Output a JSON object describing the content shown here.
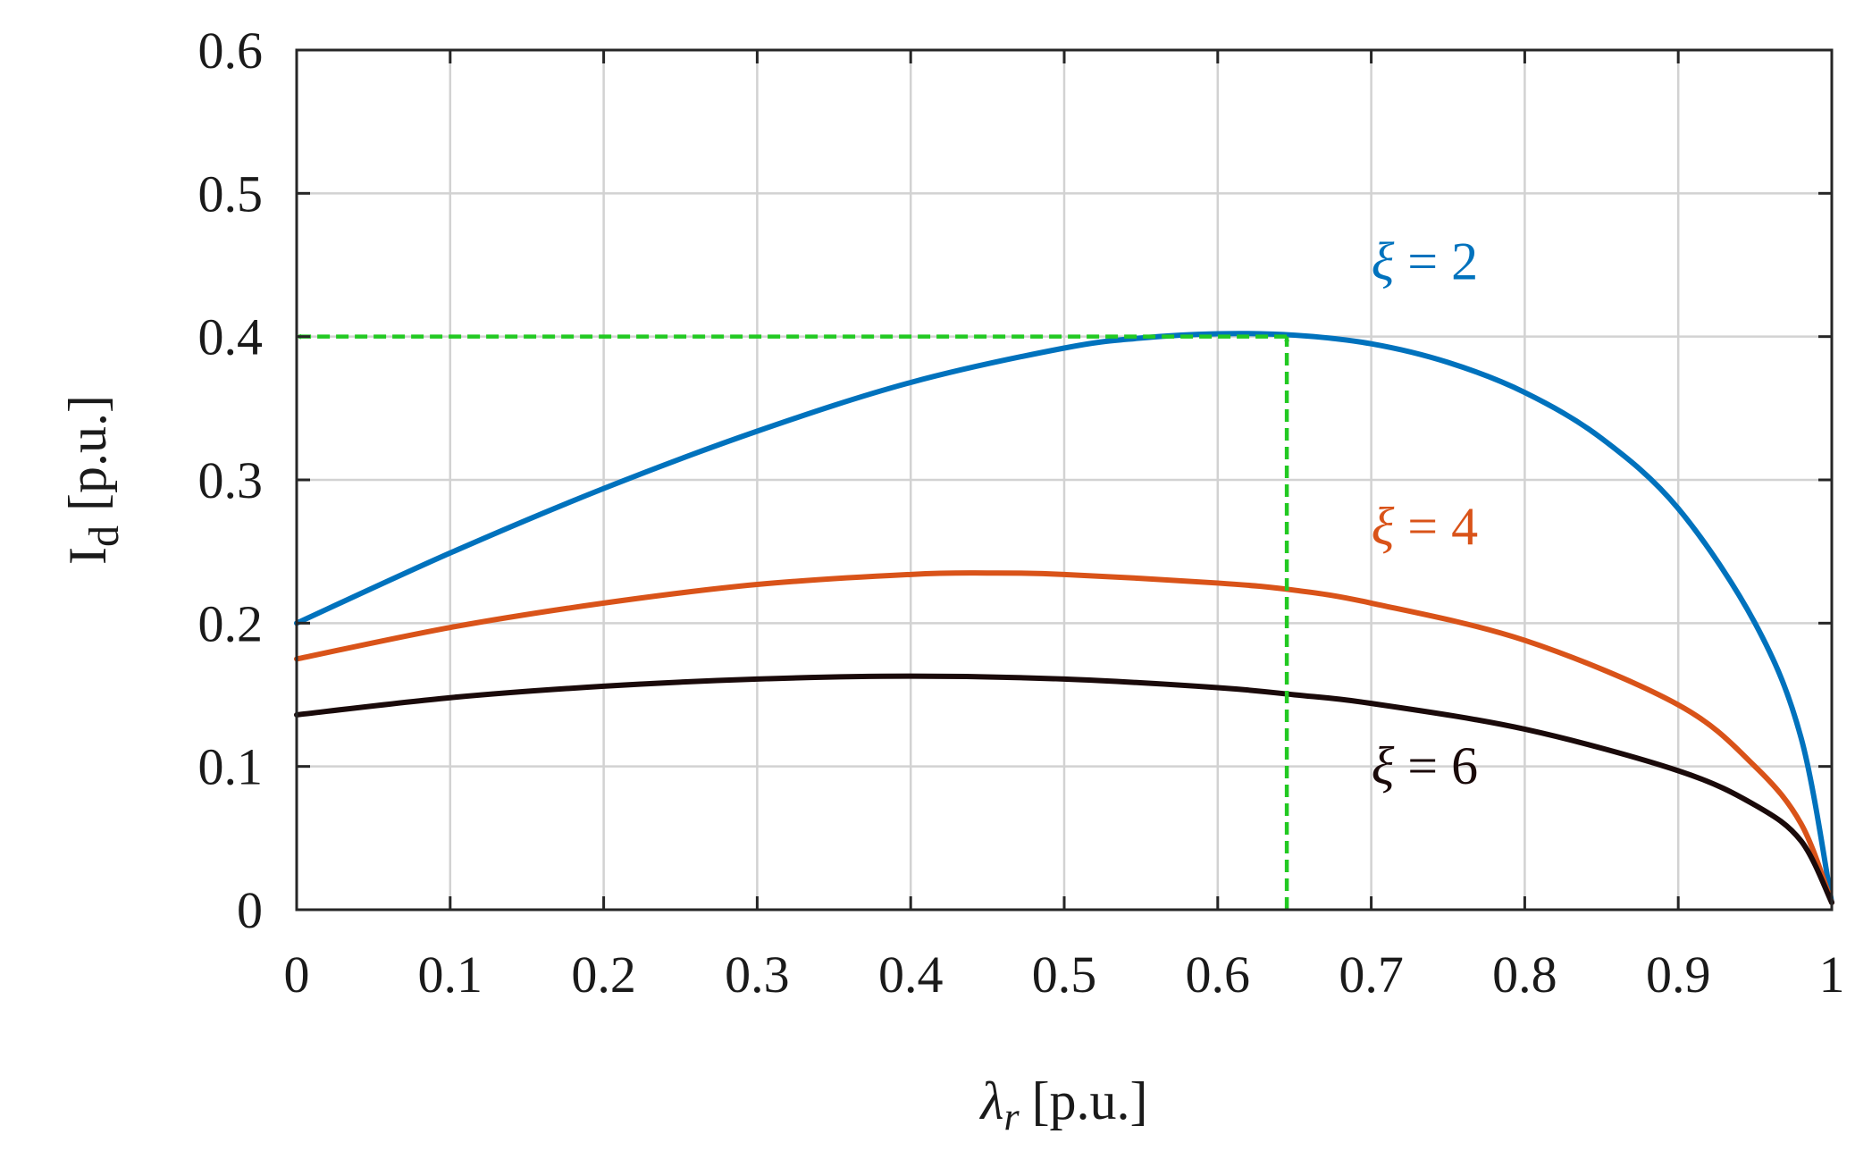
{
  "chart_data": {
    "type": "line",
    "xlabel": {
      "main": "λ",
      "sub": "r",
      "unit": "[p.u.]"
    },
    "ylabel": {
      "main": "I",
      "sub": "d",
      "unit": "[p.u.]"
    },
    "xlim": [
      0,
      1
    ],
    "ylim": [
      0,
      0.6
    ],
    "xticks": [
      "0",
      "0.1",
      "0.2",
      "0.3",
      "0.4",
      "0.5",
      "0.6",
      "0.7",
      "0.8",
      "0.9",
      "1"
    ],
    "yticks": [
      "0",
      "0.1",
      "0.2",
      "0.3",
      "0.4",
      "0.5",
      "0.6"
    ],
    "grid": true,
    "series": [
      {
        "name": "ξ = 2",
        "color": "#0072BD",
        "x": [
          0,
          0.1,
          0.2,
          0.3,
          0.4,
          0.5,
          0.55,
          0.6,
          0.65,
          0.7,
          0.75,
          0.8,
          0.85,
          0.9,
          0.95,
          0.98,
          1
        ],
        "y": [
          0.2,
          0.249,
          0.294,
          0.334,
          0.368,
          0.392,
          0.399,
          0.402,
          0.401,
          0.395,
          0.382,
          0.361,
          0.329,
          0.28,
          0.2,
          0.12,
          0.005
        ]
      },
      {
        "name": "ξ = 4",
        "color": "#D95319",
        "x": [
          0,
          0.1,
          0.2,
          0.3,
          0.4,
          0.45,
          0.5,
          0.6,
          0.65,
          0.7,
          0.8,
          0.9,
          0.95,
          0.98,
          1
        ],
        "y": [
          0.175,
          0.197,
          0.214,
          0.227,
          0.234,
          0.235,
          0.234,
          0.228,
          0.223,
          0.214,
          0.188,
          0.143,
          0.1,
          0.06,
          0.005
        ]
      },
      {
        "name": "ξ = 6",
        "color": "#1A0A0A",
        "x": [
          0,
          0.1,
          0.2,
          0.3,
          0.4,
          0.5,
          0.6,
          0.65,
          0.7,
          0.8,
          0.9,
          0.95,
          0.98,
          1
        ],
        "y": [
          0.136,
          0.148,
          0.156,
          0.161,
          0.163,
          0.161,
          0.155,
          0.15,
          0.144,
          0.126,
          0.097,
          0.073,
          0.048,
          0.005
        ]
      }
    ],
    "labels": [
      {
        "text": "ξ = 2",
        "x": 0.7,
        "y": 0.44,
        "color": "#0072BD"
      },
      {
        "text": "ξ = 4",
        "x": 0.7,
        "y": 0.255,
        "color": "#D95319"
      },
      {
        "text": "ξ = 6",
        "x": 0.7,
        "y": 0.088,
        "color": "#1A0A0A"
      }
    ],
    "guides": {
      "color": "#22C922",
      "vertical": {
        "x": 0.645,
        "y_from": 0,
        "y_to": 0.4
      },
      "horizontal": {
        "y": 0.4,
        "x_from": 0.645,
        "x_to": 0
      }
    }
  }
}
